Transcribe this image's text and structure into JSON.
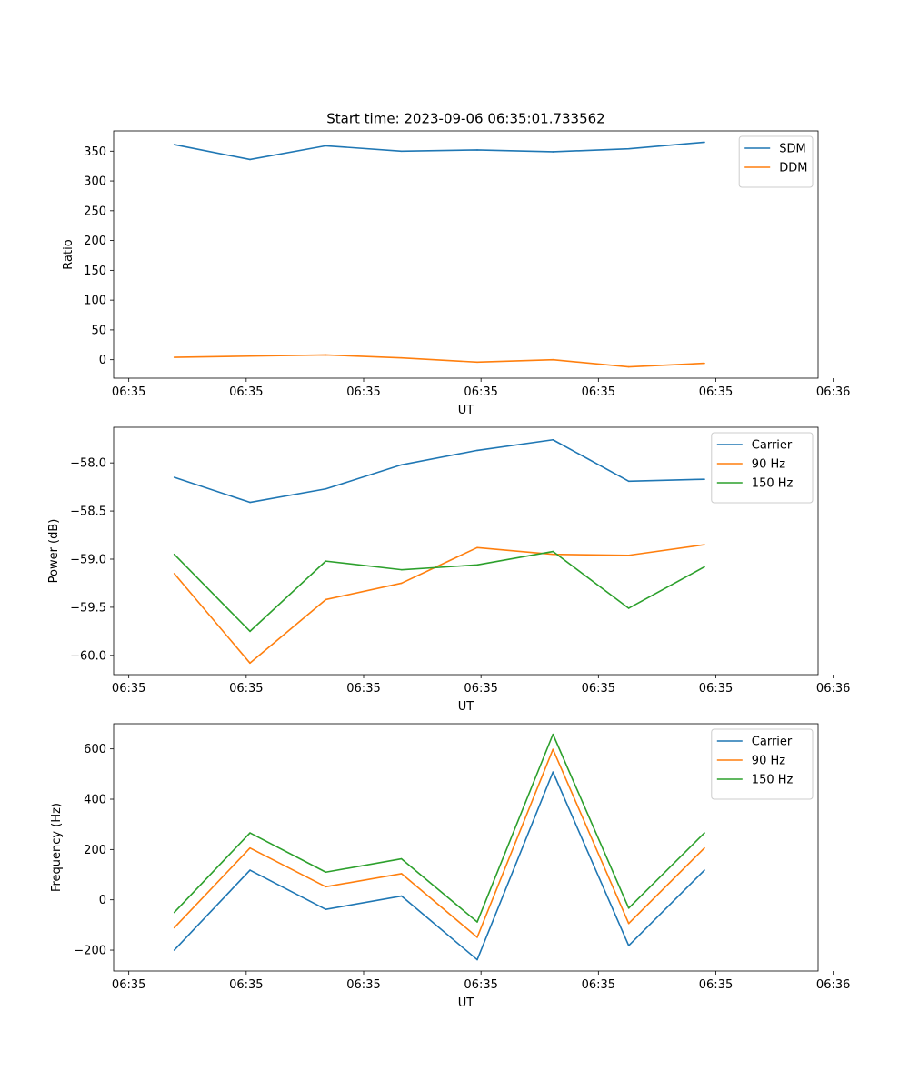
{
  "figure_title": "Start time: 2023-09-06 06:35:01.733562",
  "colors": {
    "blue": "#1f77b4",
    "orange": "#ff7f0e",
    "green": "#2ca02c"
  },
  "chart_data": [
    {
      "type": "line",
      "title": "Start time: 2023-09-06 06:35:01.733562",
      "xlabel": "UT",
      "ylabel": "Ratio",
      "x": [
        1,
        2,
        3,
        4,
        5,
        6,
        7,
        8
      ],
      "xlim": [
        0.2,
        9.5
      ],
      "x_ticks": [
        0.4,
        1.95,
        3.5,
        5.05,
        6.6,
        8.15,
        9.7
      ],
      "x_tick_labels": [
        "06:35",
        "06:35",
        "06:35",
        "06:35",
        "06:35",
        "06:35",
        "06:36"
      ],
      "ylim": [
        -31,
        384
      ],
      "y_ticks": [
        0,
        50,
        100,
        150,
        200,
        250,
        300,
        350
      ],
      "y_tick_labels": [
        "0",
        "50",
        "100",
        "150",
        "200",
        "250",
        "300",
        "350"
      ],
      "legend": "top-right",
      "series": [
        {
          "name": "SDM",
          "color": "#1f77b4",
          "values": [
            361,
            336,
            359,
            350,
            352,
            349,
            354,
            365
          ]
        },
        {
          "name": "DDM",
          "color": "#ff7f0e",
          "values": [
            4,
            6,
            8,
            3,
            -4,
            0,
            -12,
            -6
          ]
        }
      ]
    },
    {
      "type": "line",
      "title": "",
      "xlabel": "UT",
      "ylabel": "Power (dB)",
      "x": [
        1,
        2,
        3,
        4,
        5,
        6,
        7,
        8
      ],
      "xlim": [
        0.2,
        9.5
      ],
      "x_ticks": [
        0.4,
        1.95,
        3.5,
        5.05,
        6.6,
        8.15,
        9.7
      ],
      "x_tick_labels": [
        "06:35",
        "06:35",
        "06:35",
        "06:35",
        "06:35",
        "06:35",
        "06:36"
      ],
      "ylim": [
        -60.2,
        -57.63
      ],
      "y_ticks": [
        -60.0,
        -59.5,
        -59.0,
        -58.5,
        -58.0
      ],
      "y_tick_labels": [
        "−60.0",
        "−59.5",
        "−59.0",
        "−58.5",
        "−58.0"
      ],
      "legend": "top-right",
      "series": [
        {
          "name": "Carrier",
          "color": "#1f77b4",
          "values": [
            -58.15,
            -58.41,
            -58.27,
            -58.02,
            -57.87,
            -57.76,
            -58.19,
            -58.17
          ]
        },
        {
          "name": "90 Hz",
          "color": "#ff7f0e",
          "values": [
            -59.15,
            -60.08,
            -59.42,
            -59.25,
            -58.88,
            -58.95,
            -58.96,
            -58.85
          ]
        },
        {
          "name": "150 Hz",
          "color": "#2ca02c",
          "values": [
            -58.95,
            -59.75,
            -59.02,
            -59.11,
            -59.06,
            -58.92,
            -59.51,
            -59.08
          ]
        }
      ]
    },
    {
      "type": "line",
      "title": "",
      "xlabel": "UT",
      "ylabel": "Frequency (Hz)",
      "x": [
        1,
        2,
        3,
        4,
        5,
        6,
        7,
        8
      ],
      "xlim": [
        0.2,
        9.5
      ],
      "x_ticks": [
        0.4,
        1.95,
        3.5,
        5.05,
        6.6,
        8.15,
        9.7
      ],
      "x_tick_labels": [
        "06:35",
        "06:35",
        "06:35",
        "06:35",
        "06:35",
        "06:35",
        "06:36"
      ],
      "ylim": [
        -283,
        700
      ],
      "y_ticks": [
        -200,
        0,
        200,
        400,
        600
      ],
      "y_tick_labels": [
        "−200",
        "0",
        "200",
        "400",
        "600"
      ],
      "legend": "top-right",
      "series": [
        {
          "name": "Carrier",
          "color": "#1f77b4",
          "values": [
            -200,
            118,
            -38,
            15,
            -238,
            508,
            -182,
            118
          ]
        },
        {
          "name": "90 Hz",
          "color": "#ff7f0e",
          "values": [
            -111,
            206,
            52,
            104,
            -149,
            598,
            -94,
            206
          ]
        },
        {
          "name": "150 Hz",
          "color": "#2ca02c",
          "values": [
            -50,
            266,
            110,
            163,
            -88,
            658,
            -33,
            266
          ]
        }
      ]
    }
  ]
}
